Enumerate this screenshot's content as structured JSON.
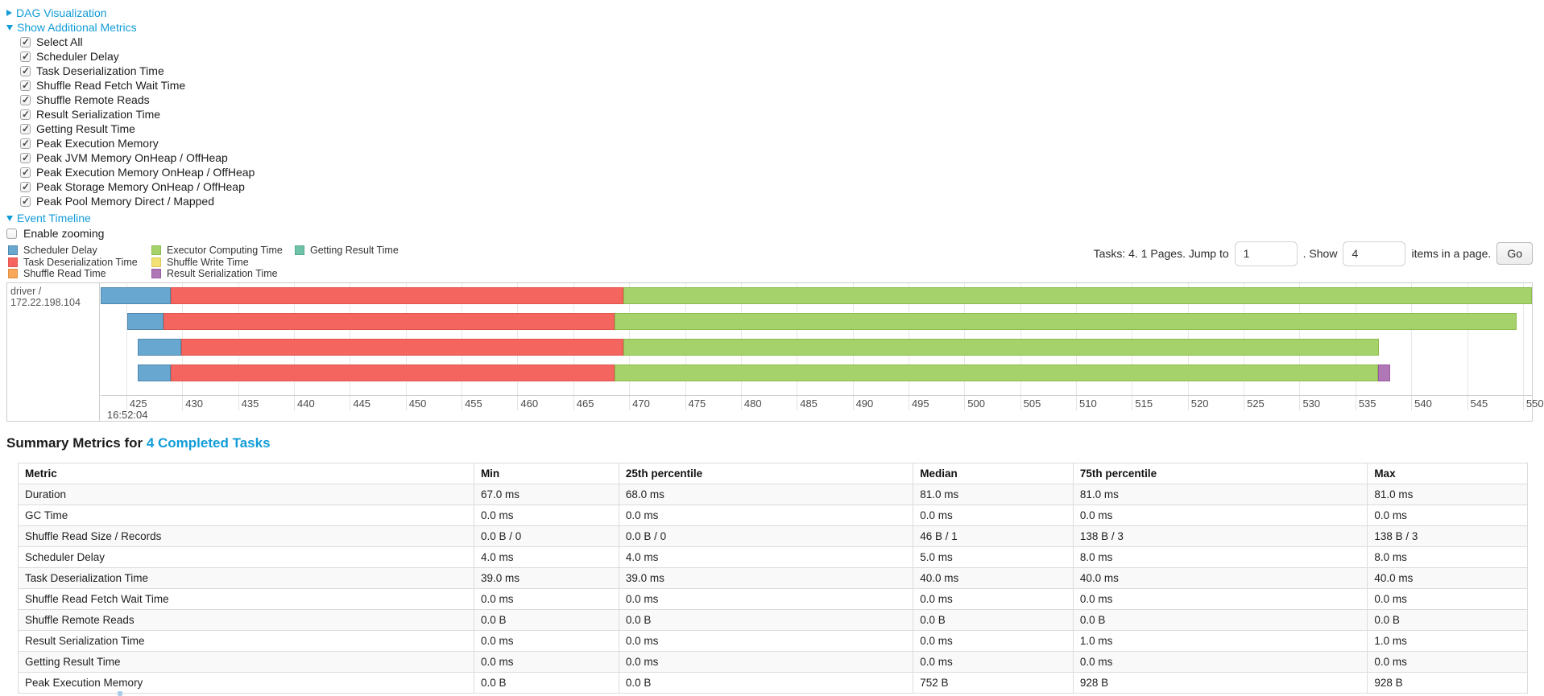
{
  "colors": {
    "link": "#129cd8"
  },
  "toggles": {
    "dag": "DAG Visualization",
    "metrics": "Show Additional Metrics",
    "timeline": "Event Timeline"
  },
  "metrics_panel": {
    "checkboxes": [
      {
        "label": "Select All",
        "checked": true
      },
      {
        "label": "Scheduler Delay",
        "checked": true
      },
      {
        "label": "Task Deserialization Time",
        "checked": true
      },
      {
        "label": "Shuffle Read Fetch Wait Time",
        "checked": true
      },
      {
        "label": "Shuffle Remote Reads",
        "checked": true
      },
      {
        "label": "Result Serialization Time",
        "checked": true
      },
      {
        "label": "Getting Result Time",
        "checked": true
      },
      {
        "label": "Peak Execution Memory",
        "checked": true
      },
      {
        "label": "Peak JVM Memory OnHeap / OffHeap",
        "checked": true
      },
      {
        "label": "Peak Execution Memory OnHeap / OffHeap",
        "checked": true
      },
      {
        "label": "Peak Storage Memory OnHeap / OffHeap",
        "checked": true
      },
      {
        "label": "Peak Pool Memory Direct / Mapped",
        "checked": true
      }
    ],
    "enable_zooming": {
      "label": "Enable zooming",
      "checked": false
    }
  },
  "pagination": {
    "tasks_text": "Tasks: 4. 1 Pages. Jump to",
    "jump_value": "1",
    "show_text": ". Show",
    "show_value": "4",
    "items_text": "items in a page.",
    "go_label": "Go"
  },
  "chart_data": {
    "type": "timeline",
    "row_label": "driver / 172.22.198.104",
    "x_axis": {
      "domain": [
        422.7,
        550.8
      ],
      "ticks": [
        425,
        430,
        435,
        440,
        445,
        450,
        455,
        460,
        465,
        470,
        475,
        480,
        485,
        490,
        495,
        500,
        505,
        510,
        515,
        520,
        525,
        530,
        535,
        540,
        545,
        550
      ],
      "major_label": "16:52:04",
      "major_tick": 425
    },
    "legend": [
      {
        "key": "scheduler_delay",
        "label": "Scheduler Delay"
      },
      {
        "key": "task_deserialization",
        "label": "Task Deserialization Time"
      },
      {
        "key": "shuffle_read",
        "label": "Shuffle Read Time"
      },
      {
        "key": "executor_computing",
        "label": "Executor Computing Time"
      },
      {
        "key": "shuffle_write",
        "label": "Shuffle Write Time"
      },
      {
        "key": "result_serialization",
        "label": "Result Serialization Time"
      },
      {
        "key": "getting_result",
        "label": "Getting Result Time"
      }
    ],
    "colors": {
      "scheduler_delay": {
        "fill": "#68a8d0",
        "border": "#4f87ac"
      },
      "task_deserialization": {
        "fill": "#f4655f",
        "border": "#e2544e"
      },
      "shuffle_read": {
        "fill": "#f8a75b",
        "border": "#e08f43"
      },
      "executor_computing": {
        "fill": "#a5d26a",
        "border": "#8cbb4e"
      },
      "shuffle_write": {
        "fill": "#f2e173",
        "border": "#dcc95a"
      },
      "result_serialization": {
        "fill": "#b077b7",
        "border": "#985c9f"
      },
      "getting_result": {
        "fill": "#6dc2a8",
        "border": "#55a98e"
      }
    },
    "tasks": [
      {
        "segments": [
          {
            "type": "scheduler_delay",
            "start": 422.7,
            "end": 429.0
          },
          {
            "type": "task_deserialization",
            "start": 429.0,
            "end": 469.5
          },
          {
            "type": "executor_computing",
            "start": 469.5,
            "end": 550.8
          }
        ]
      },
      {
        "segments": [
          {
            "type": "scheduler_delay",
            "start": 425.1,
            "end": 428.3
          },
          {
            "type": "task_deserialization",
            "start": 428.3,
            "end": 468.7
          },
          {
            "type": "executor_computing",
            "start": 468.7,
            "end": 549.4
          }
        ]
      },
      {
        "segments": [
          {
            "type": "scheduler_delay",
            "start": 426.0,
            "end": 429.9
          },
          {
            "type": "task_deserialization",
            "start": 429.9,
            "end": 469.5
          },
          {
            "type": "executor_computing",
            "start": 469.5,
            "end": 537.1
          }
        ]
      },
      {
        "segments": [
          {
            "type": "scheduler_delay",
            "start": 426.0,
            "end": 429.0
          },
          {
            "type": "task_deserialization",
            "start": 429.0,
            "end": 468.7
          },
          {
            "type": "executor_computing",
            "start": 468.7,
            "end": 537.0
          },
          {
            "type": "result_serialization",
            "start": 537.0,
            "end": 538.1
          }
        ]
      }
    ]
  },
  "summary": {
    "title_prefix": "Summary Metrics for ",
    "title_link": "4 Completed Tasks",
    "table": {
      "headers": [
        "Metric",
        "Min",
        "25th percentile",
        "Median",
        "75th percentile",
        "Max"
      ],
      "col_widths": [
        "30.2%",
        "9.6%",
        "19.5%",
        "10.6%",
        "19.5%",
        "10.6%"
      ],
      "rows": [
        {
          "metric": "Duration",
          "values": [
            "67.0 ms",
            "68.0 ms",
            "81.0 ms",
            "81.0 ms",
            "81.0 ms"
          ]
        },
        {
          "metric": "GC Time",
          "values": [
            "0.0 ms",
            "0.0 ms",
            "0.0 ms",
            "0.0 ms",
            "0.0 ms"
          ]
        },
        {
          "metric": "Shuffle Read Size / Records",
          "values": [
            "0.0 B / 0",
            "0.0 B / 0",
            "46 B / 1",
            "138 B / 3",
            "138 B / 3"
          ]
        },
        {
          "metric": "Scheduler Delay",
          "values": [
            "4.0 ms",
            "4.0 ms",
            "5.0 ms",
            "8.0 ms",
            "8.0 ms"
          ]
        },
        {
          "metric": "Task Deserialization Time",
          "values": [
            "39.0 ms",
            "39.0 ms",
            "40.0 ms",
            "40.0 ms",
            "40.0 ms"
          ]
        },
        {
          "metric": "Shuffle Read Fetch Wait Time",
          "values": [
            "0.0 ms",
            "0.0 ms",
            "0.0 ms",
            "0.0 ms",
            "0.0 ms"
          ]
        },
        {
          "metric": "Shuffle Remote Reads",
          "values": [
            "0.0 B",
            "0.0 B",
            "0.0 B",
            "0.0 B",
            "0.0 B"
          ]
        },
        {
          "metric": "Result Serialization Time",
          "values": [
            "0.0 ms",
            "0.0 ms",
            "0.0 ms",
            "1.0 ms",
            "1.0 ms"
          ]
        },
        {
          "metric": "Getting Result Time",
          "values": [
            "0.0 ms",
            "0.0 ms",
            "0.0 ms",
            "0.0 ms",
            "0.0 ms"
          ]
        },
        {
          "metric": "Peak Execution Memory",
          "values": [
            "0.0 B",
            "0.0 B",
            "752 B",
            "928 B",
            "928 B"
          ]
        }
      ]
    }
  }
}
